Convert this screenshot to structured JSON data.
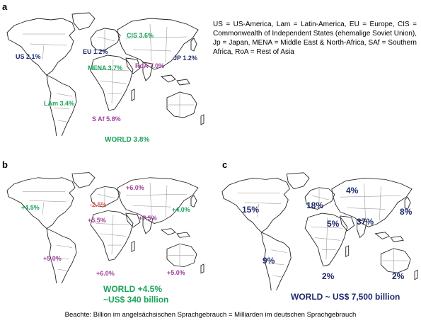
{
  "panels": {
    "a": {
      "letter": "a",
      "labels": {
        "us": "US 2.1%",
        "eu": "EU 1.2%",
        "cis": "CIS 3.6%",
        "jp": "JP 1.2%",
        "mena": "MENA 3.7%",
        "roa": "RoA 7.0%",
        "lam": "LAm 3.4%",
        "saf": "S Af 5.8%",
        "world": "WORLD 3.8%"
      }
    },
    "b": {
      "letter": "b",
      "labels": {
        "cis": "+6.0%",
        "na": "+4.5%",
        "eu": "-2.5%",
        "jp": "+4.0%",
        "mena": "+5.5%",
        "roa": "+7.5%",
        "lam": "+5.0%",
        "saf": "+6.0%",
        "oceania": "+5.0%",
        "world_line1": "WORLD +4.5%",
        "world_line2": "~US$ 340 billion"
      }
    },
    "c": {
      "letter": "c",
      "labels": {
        "cis": "4%",
        "na": "15%",
        "eu": "18%",
        "jp": "8%",
        "mena": "5%",
        "roa": "37%",
        "lam": "9%",
        "saf": "2%",
        "oceania": "2%",
        "world": "WORLD ~ US$ 7,500 billion"
      }
    }
  },
  "legend": "US = US-America, Lam = Latin-America, EU = Europe, CIS = Commonwealth of Independent States (ehemalige Soviet Union), Jp = Japan, MENA = Middle East & North-Africa, SAf = Southern Africa, RoA = Rest of Asia",
  "footer": "Beachte: Billion im angelsächsischen Sprachgebrauch = Milliarden im deutschen Sprachgebrauch",
  "colors": {
    "green": "#1aa35a",
    "navy": "#1e2a6e",
    "purple": "#a0409a",
    "red": "#e2574c"
  }
}
